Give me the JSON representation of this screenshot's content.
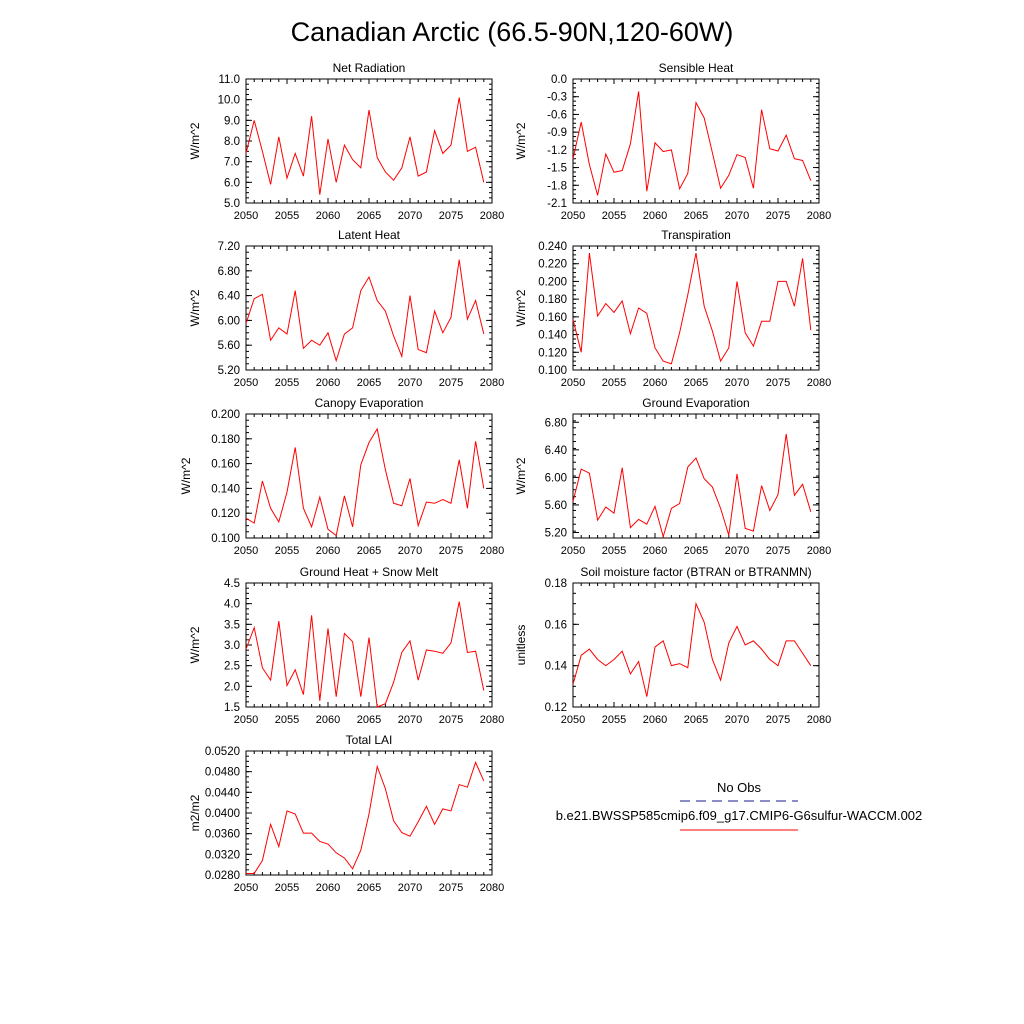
{
  "figure": {
    "title": "Canadian Arctic (66.5-90N,120-60W)"
  },
  "legend": {
    "obs_label": "No Obs",
    "obs_color": "#1a1a8c",
    "model_label": "b.e21.BWSSP585cmip6.f09_g17.CMIP6-G6sulfur-WACCM.002",
    "model_color": "#ff0000"
  },
  "colors": {
    "line": "#ff0000",
    "axis": "#000000"
  },
  "chart_data": [
    {
      "type": "line",
      "title": "Net Radiation",
      "ylabel": "W/m^2",
      "xlim": [
        2050,
        2080
      ],
      "ylim": [
        5.0,
        11.0
      ],
      "xticks": [
        "2050",
        "2055",
        "2060",
        "2065",
        "2070",
        "2075",
        "2080"
      ],
      "yticks": [
        "5.0",
        "6.0",
        "7.0",
        "8.0",
        "9.0",
        "10.0",
        "11.0"
      ],
      "x": [
        2050,
        2051,
        2052,
        2053,
        2054,
        2055,
        2056,
        2057,
        2058,
        2059,
        2060,
        2061,
        2062,
        2063,
        2064,
        2065,
        2066,
        2067,
        2068,
        2069,
        2070,
        2071,
        2072,
        2073,
        2074,
        2075,
        2076,
        2077,
        2078,
        2079
      ],
      "series": [
        {
          "values": [
            7.4,
            9.0,
            7.5,
            5.9,
            8.2,
            6.2,
            7.4,
            6.3,
            9.2,
            5.4,
            8.1,
            6.0,
            7.8,
            7.1,
            6.7,
            9.5,
            7.2,
            6.5,
            6.1,
            6.7,
            8.2,
            6.3,
            6.5,
            8.5,
            7.4,
            7.8,
            10.1,
            7.5,
            7.7,
            6.0
          ]
        }
      ]
    },
    {
      "type": "line",
      "title": "Sensible Heat",
      "ylabel": "W/m^2",
      "xlim": [
        2050,
        2080
      ],
      "ylim": [
        -2.1,
        0.0
      ],
      "xticks": [
        "2050",
        "2055",
        "2060",
        "2065",
        "2070",
        "2075",
        "2080"
      ],
      "yticks": [
        "-2.1",
        "-1.8",
        "-1.5",
        "-1.2",
        "-0.9",
        "-0.6",
        "-0.3",
        "0.0"
      ],
      "x": [
        2050,
        2051,
        2052,
        2053,
        2054,
        2055,
        2056,
        2057,
        2058,
        2059,
        2060,
        2061,
        2062,
        2063,
        2064,
        2065,
        2066,
        2067,
        2068,
        2069,
        2070,
        2071,
        2072,
        2073,
        2074,
        2075,
        2076,
        2077,
        2078,
        2079
      ],
      "series": [
        {
          "values": [
            -1.35,
            -0.73,
            -1.45,
            -1.97,
            -1.27,
            -1.58,
            -1.55,
            -1.1,
            -0.21,
            -1.9,
            -1.08,
            -1.23,
            -1.2,
            -1.86,
            -1.6,
            -0.4,
            -0.66,
            -1.25,
            -1.85,
            -1.63,
            -1.28,
            -1.33,
            -1.85,
            -0.52,
            -1.18,
            -1.22,
            -0.95,
            -1.35,
            -1.38,
            -1.72
          ]
        }
      ]
    },
    {
      "type": "line",
      "title": "Latent Heat",
      "ylabel": "W/m^2",
      "xlim": [
        2050,
        2080
      ],
      "ylim": [
        5.2,
        7.2
      ],
      "xticks": [
        "2050",
        "2055",
        "2060",
        "2065",
        "2070",
        "2075",
        "2080"
      ],
      "yticks": [
        "5.20",
        "5.60",
        "6.00",
        "6.40",
        "6.80",
        "7.20"
      ],
      "x": [
        2050,
        2051,
        2052,
        2053,
        2054,
        2055,
        2056,
        2057,
        2058,
        2059,
        2060,
        2061,
        2062,
        2063,
        2064,
        2065,
        2066,
        2067,
        2068,
        2069,
        2070,
        2071,
        2072,
        2073,
        2074,
        2075,
        2076,
        2077,
        2078,
        2079
      ],
      "series": [
        {
          "values": [
            5.95,
            6.35,
            6.42,
            5.68,
            5.88,
            5.78,
            6.48,
            5.55,
            5.68,
            5.6,
            5.8,
            5.35,
            5.78,
            5.88,
            6.48,
            6.7,
            6.32,
            6.15,
            5.75,
            5.42,
            6.4,
            5.53,
            5.48,
            6.15,
            5.8,
            6.05,
            6.98,
            6.02,
            6.32,
            5.78
          ]
        }
      ]
    },
    {
      "type": "line",
      "title": "Transpiration",
      "ylabel": "W/m^2",
      "xlim": [
        2050,
        2080
      ],
      "ylim": [
        0.1,
        0.24
      ],
      "xticks": [
        "2050",
        "2055",
        "2060",
        "2065",
        "2070",
        "2075",
        "2080"
      ],
      "yticks": [
        "0.100",
        "0.120",
        "0.140",
        "0.160",
        "0.180",
        "0.200",
        "0.220",
        "0.240"
      ],
      "x": [
        2050,
        2051,
        2052,
        2053,
        2054,
        2055,
        2056,
        2057,
        2058,
        2059,
        2060,
        2061,
        2062,
        2063,
        2064,
        2065,
        2066,
        2067,
        2068,
        2069,
        2070,
        2071,
        2072,
        2073,
        2074,
        2075,
        2076,
        2077,
        2078,
        2079
      ],
      "series": [
        {
          "values": [
            0.157,
            0.12,
            0.232,
            0.161,
            0.175,
            0.165,
            0.178,
            0.141,
            0.17,
            0.164,
            0.125,
            0.11,
            0.107,
            0.142,
            0.185,
            0.232,
            0.172,
            0.144,
            0.11,
            0.125,
            0.2,
            0.142,
            0.127,
            0.155,
            0.155,
            0.2,
            0.2,
            0.172,
            0.226,
            0.145
          ]
        }
      ]
    },
    {
      "type": "line",
      "title": "Canopy Evaporation",
      "ylabel": "W/m^2",
      "xlim": [
        2050,
        2080
      ],
      "ylim": [
        0.1,
        0.2
      ],
      "xticks": [
        "2050",
        "2055",
        "2060",
        "2065",
        "2070",
        "2075",
        "2080"
      ],
      "yticks": [
        "0.100",
        "0.120",
        "0.140",
        "0.160",
        "0.180",
        "0.200"
      ],
      "x": [
        2050,
        2051,
        2052,
        2053,
        2054,
        2055,
        2056,
        2057,
        2058,
        2059,
        2060,
        2061,
        2062,
        2063,
        2064,
        2065,
        2066,
        2067,
        2068,
        2069,
        2070,
        2071,
        2072,
        2073,
        2074,
        2075,
        2076,
        2077,
        2078,
        2079
      ],
      "series": [
        {
          "values": [
            0.116,
            0.112,
            0.146,
            0.124,
            0.113,
            0.137,
            0.173,
            0.124,
            0.109,
            0.133,
            0.107,
            0.102,
            0.134,
            0.109,
            0.159,
            0.177,
            0.188,
            0.155,
            0.128,
            0.126,
            0.148,
            0.11,
            0.129,
            0.128,
            0.131,
            0.128,
            0.163,
            0.124,
            0.178,
            0.14
          ]
        }
      ]
    },
    {
      "type": "line",
      "title": "Ground Evaporation",
      "ylabel": "W/m^2",
      "xlim": [
        2050,
        2080
      ],
      "ylim": [
        5.12,
        6.92
      ],
      "xticks": [
        "2050",
        "2055",
        "2060",
        "2065",
        "2070",
        "2075",
        "2080"
      ],
      "yticks": [
        "5.20",
        "5.60",
        "6.00",
        "6.40",
        "6.80"
      ],
      "x": [
        2050,
        2051,
        2052,
        2053,
        2054,
        2055,
        2056,
        2057,
        2058,
        2059,
        2060,
        2061,
        2062,
        2063,
        2064,
        2065,
        2066,
        2067,
        2068,
        2069,
        2070,
        2071,
        2072,
        2073,
        2074,
        2075,
        2076,
        2077,
        2078,
        2079
      ],
      "series": [
        {
          "values": [
            5.65,
            6.12,
            6.06,
            5.38,
            5.57,
            5.48,
            6.14,
            5.27,
            5.39,
            5.32,
            5.58,
            5.14,
            5.55,
            5.62,
            6.15,
            6.28,
            5.98,
            5.86,
            5.55,
            5.16,
            6.05,
            5.26,
            5.22,
            5.88,
            5.52,
            5.75,
            6.63,
            5.74,
            5.9,
            5.5
          ]
        }
      ]
    },
    {
      "type": "line",
      "title": "Ground Heat + Snow Melt",
      "ylabel": "W/m^2",
      "xlim": [
        2050,
        2080
      ],
      "ylim": [
        1.5,
        4.5
      ],
      "xticks": [
        "2050",
        "2055",
        "2060",
        "2065",
        "2070",
        "2075",
        "2080"
      ],
      "yticks": [
        "1.5",
        "2.0",
        "2.5",
        "3.0",
        "3.5",
        "4.0",
        "4.5"
      ],
      "x": [
        2050,
        2051,
        2052,
        2053,
        2054,
        2055,
        2056,
        2057,
        2058,
        2059,
        2060,
        2061,
        2062,
        2063,
        2064,
        2065,
        2066,
        2067,
        2068,
        2069,
        2070,
        2071,
        2072,
        2073,
        2074,
        2075,
        2076,
        2077,
        2078,
        2079
      ],
      "series": [
        {
          "values": [
            2.9,
            3.42,
            2.45,
            2.15,
            3.58,
            2.02,
            2.4,
            1.8,
            3.72,
            1.65,
            3.4,
            1.75,
            3.28,
            3.08,
            1.75,
            3.18,
            1.5,
            1.58,
            2.1,
            2.82,
            3.1,
            2.15,
            2.88,
            2.85,
            2.8,
            3.05,
            4.05,
            2.82,
            2.85,
            1.9
          ]
        }
      ]
    },
    {
      "type": "line",
      "title": "Soil moisture factor (BTRAN or BTRANMN)",
      "ylabel": "unitless",
      "xlim": [
        2050,
        2080
      ],
      "ylim": [
        0.12,
        0.18
      ],
      "xticks": [
        "2050",
        "2055",
        "2060",
        "2065",
        "2070",
        "2075",
        "2080"
      ],
      "yticks": [
        "0.12",
        "0.14",
        "0.16",
        "0.18"
      ],
      "x": [
        2050,
        2051,
        2052,
        2053,
        2054,
        2055,
        2056,
        2057,
        2058,
        2059,
        2060,
        2061,
        2062,
        2063,
        2064,
        2065,
        2066,
        2067,
        2068,
        2069,
        2070,
        2071,
        2072,
        2073,
        2074,
        2075,
        2076,
        2077,
        2078,
        2079
      ],
      "series": [
        {
          "values": [
            0.131,
            0.145,
            0.148,
            0.143,
            0.14,
            0.143,
            0.147,
            0.136,
            0.142,
            0.125,
            0.149,
            0.152,
            0.14,
            0.141,
            0.139,
            0.17,
            0.161,
            0.143,
            0.133,
            0.151,
            0.159,
            0.15,
            0.152,
            0.148,
            0.143,
            0.14,
            0.152,
            0.152,
            0.146,
            0.14
          ]
        }
      ]
    },
    {
      "type": "line",
      "title": "Total LAI",
      "ylabel": "m2/m2",
      "xlim": [
        2050,
        2080
      ],
      "ylim": [
        0.028,
        0.052
      ],
      "xticks": [
        "2050",
        "2055",
        "2060",
        "2065",
        "2070",
        "2075",
        "2080"
      ],
      "yticks": [
        "0.0280",
        "0.0320",
        "0.0360",
        "0.0400",
        "0.0440",
        "0.0480",
        "0.0520"
      ],
      "x": [
        2050,
        2051,
        2052,
        2053,
        2054,
        2055,
        2056,
        2057,
        2058,
        2059,
        2060,
        2061,
        2062,
        2063,
        2064,
        2065,
        2066,
        2067,
        2068,
        2069,
        2070,
        2071,
        2072,
        2073,
        2074,
        2075,
        2076,
        2077,
        2078,
        2079
      ],
      "series": [
        {
          "values": [
            0.0283,
            0.0283,
            0.0308,
            0.0378,
            0.0335,
            0.0404,
            0.0398,
            0.0361,
            0.0361,
            0.0345,
            0.034,
            0.0323,
            0.0313,
            0.0292,
            0.0328,
            0.0398,
            0.049,
            0.0447,
            0.0385,
            0.0362,
            0.0355,
            0.0383,
            0.0413,
            0.0378,
            0.0408,
            0.0404,
            0.0455,
            0.045,
            0.0498,
            0.0462
          ]
        }
      ]
    }
  ]
}
